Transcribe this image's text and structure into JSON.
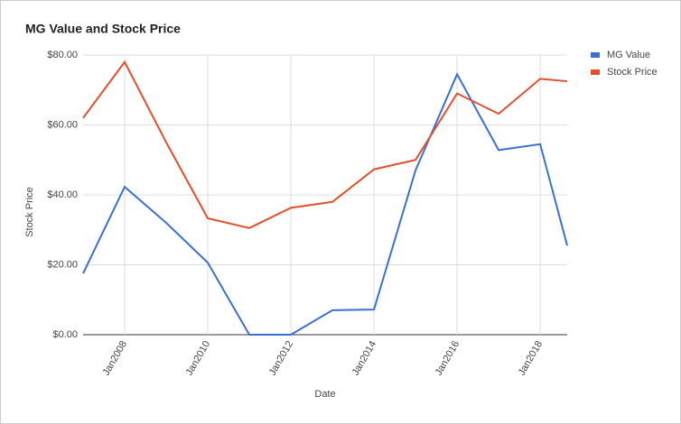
{
  "chart_data": {
    "type": "line",
    "title": "MG Value and Stock Price",
    "x_label": "Date",
    "y_label": "Stock Price",
    "x": [
      2007,
      2008,
      2009,
      2010,
      2011,
      2012,
      2013,
      2014,
      2015,
      2016,
      2017,
      2018,
      2018.65
    ],
    "xlim": [
      2007,
      2018.65
    ],
    "xticks": [
      {
        "value": 2008,
        "label": "Jan2008"
      },
      {
        "value": 2010,
        "label": "Jan2010"
      },
      {
        "value": 2012,
        "label": "Jan2012"
      },
      {
        "value": 2014,
        "label": "Jan2014"
      },
      {
        "value": 2016,
        "label": "Jan2016"
      },
      {
        "value": 2018,
        "label": "Jan2018"
      }
    ],
    "ylim": [
      0,
      80
    ],
    "yticks": [
      {
        "value": 0,
        "label": "$0.00"
      },
      {
        "value": 20,
        "label": "$20.00"
      },
      {
        "value": 40,
        "label": "$40.00"
      },
      {
        "value": 60,
        "label": "$60.00"
      },
      {
        "value": 80,
        "label": "$80.00"
      }
    ],
    "grid": true,
    "legend": "right",
    "series": [
      {
        "name": "MG Value",
        "color": "#3c6fd3",
        "values": [
          17.5,
          42.3,
          32,
          20.6,
          0,
          0,
          7,
          7.2,
          47,
          74.5,
          52.8,
          54.5,
          25.5
        ]
      },
      {
        "name": "Stock Price",
        "color": "#e2502b",
        "values": [
          62,
          78,
          55,
          33.3,
          30.5,
          36.3,
          38,
          47.3,
          50,
          69,
          63.2,
          73.2,
          72.5
        ]
      }
    ]
  }
}
